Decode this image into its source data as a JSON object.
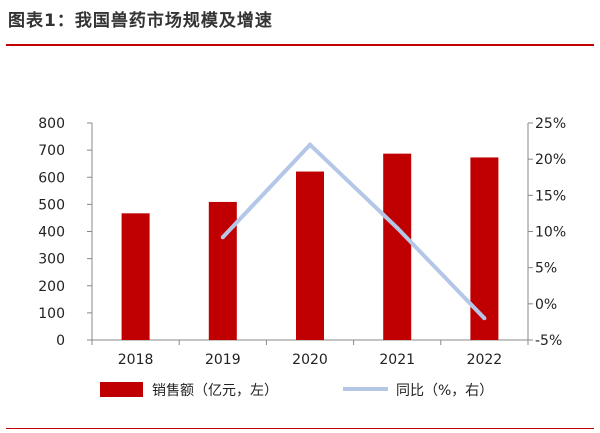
{
  "header": {
    "title": "图表1：我国兽药市场规模及增速"
  },
  "chart_data": {
    "type": "bar",
    "title": "",
    "categories": [
      "2018",
      "2019",
      "2020",
      "2021",
      "2022"
    ],
    "series": [
      {
        "name": "销售额（亿元，左）",
        "type": "bar",
        "axis": "left",
        "values": [
          467,
          509,
          621,
          687,
          673
        ]
      },
      {
        "name": "同比（%，右）",
        "type": "line",
        "axis": "right",
        "values": [
          null,
          9.2,
          22.0,
          10.5,
          -2.0
        ]
      }
    ],
    "y_left": {
      "min": 0,
      "max": 800,
      "ticks": [
        0,
        100,
        200,
        300,
        400,
        500,
        600,
        700,
        800
      ]
    },
    "y_right": {
      "min": -5,
      "max": 25,
      "ticks": [
        "-5%",
        "0%",
        "5%",
        "10%",
        "15%",
        "20%",
        "25%"
      ]
    },
    "grid": false,
    "legend_position": "bottom",
    "colors": {
      "bar": "#c00000",
      "line": "#b4c7e7",
      "axis": "#888888",
      "text": "#222222"
    }
  }
}
